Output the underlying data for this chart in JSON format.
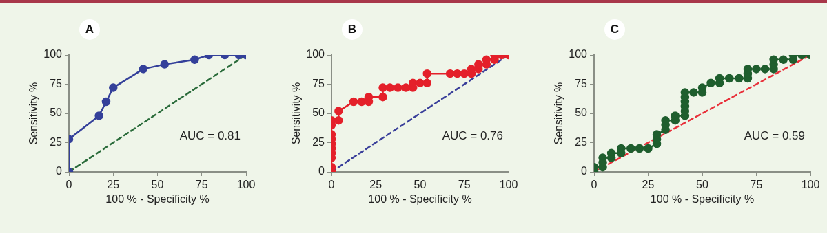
{
  "chart_data": [
    {
      "type": "line",
      "title": "A",
      "xlabel": "100 % - Specificity %",
      "ylabel": "Sensitivity %",
      "xlim": [
        0,
        100
      ],
      "xticks": [
        0,
        25,
        50,
        75,
        100
      ],
      "ylim": [
        0,
        100
      ],
      "yticks": [
        0,
        25,
        50,
        75,
        100
      ],
      "grid": false,
      "legend": false,
      "marker": "circle",
      "annotations": [
        "AUC = 0.81"
      ],
      "series": [
        {
          "color": "#34409a",
          "x": [
            0,
            0,
            17,
            21,
            25,
            42,
            54,
            71,
            79,
            88,
            96,
            100
          ],
          "values": [
            0,
            28,
            48,
            60,
            72,
            88,
            92,
            96,
            100,
            100,
            100,
            100
          ]
        },
        {
          "color": "#2a6b3a",
          "x": [
            0,
            100
          ],
          "values": [
            0,
            100
          ],
          "marker": "none",
          "line_style": "dashed"
        }
      ]
    },
    {
      "type": "line",
      "title": "B",
      "xlabel": "100 % - Specificity %",
      "ylabel": "Sensitivity %",
      "xlim": [
        0,
        100
      ],
      "xticks": [
        0,
        25,
        50,
        75,
        100
      ],
      "ylim": [
        0,
        100
      ],
      "yticks": [
        0,
        25,
        50,
        75,
        100
      ],
      "grid": false,
      "legend": false,
      "marker": "circle",
      "annotations": [
        "AUC = 0.76"
      ],
      "series": [
        {
          "color": "#e4202a",
          "x": [
            0,
            0,
            0,
            0,
            0,
            0,
            0,
            0,
            0,
            0,
            4,
            4,
            12.5,
            17,
            21,
            21,
            29,
            29,
            33,
            37.5,
            42,
            46,
            46,
            50,
            54,
            54,
            67,
            71,
            75,
            79,
            79,
            83,
            83,
            87.5,
            87.5,
            92,
            92,
            96,
            100
          ],
          "values": [
            0,
            4,
            12,
            16,
            20,
            24,
            28,
            32,
            40,
            44,
            44,
            52,
            60,
            60,
            60,
            64,
            64,
            72,
            72,
            72,
            72,
            72,
            76,
            76,
            76,
            84,
            84,
            84,
            84,
            84,
            88,
            88,
            92,
            92,
            96,
            96,
            100,
            100,
            100
          ]
        },
        {
          "color": "#3a3f9a",
          "x": [
            0,
            100
          ],
          "values": [
            0,
            100
          ],
          "marker": "none",
          "line_style": "dashed"
        }
      ]
    },
    {
      "type": "line",
      "title": "C",
      "xlabel": "100 % - Specificity %",
      "ylabel": "Sensitivity %",
      "xlim": [
        0,
        100
      ],
      "xticks": [
        0,
        25,
        50,
        75,
        100
      ],
      "ylim": [
        0,
        100
      ],
      "yticks": [
        0,
        25,
        50,
        75,
        100
      ],
      "grid": false,
      "legend": false,
      "marker": "circle",
      "annotations": [
        "AUC = 0.59"
      ],
      "series": [
        {
          "color": "#1f5e2e",
          "x": [
            0,
            0,
            4,
            4,
            4,
            8,
            8,
            12.5,
            12.5,
            17,
            21,
            25,
            29,
            29,
            29,
            33,
            33,
            33,
            37.5,
            37.5,
            42,
            42,
            42,
            42,
            42,
            42,
            46,
            50,
            50,
            54,
            58,
            58,
            62.5,
            67,
            71,
            71,
            71,
            75,
            79,
            83,
            83,
            83,
            87.5,
            92,
            92,
            96,
            100
          ],
          "values": [
            0,
            4,
            4,
            8,
            12,
            12,
            16,
            16,
            20,
            20,
            20,
            20,
            24,
            28,
            32,
            36,
            40,
            44,
            44,
            48,
            48,
            52,
            56,
            60,
            64,
            68,
            68,
            68,
            72,
            76,
            76,
            80,
            80,
            80,
            80,
            84,
            88,
            88,
            88,
            88,
            92,
            96,
            96,
            96,
            100,
            100,
            100
          ]
        },
        {
          "color": "#e8303a",
          "x": [
            0,
            100
          ],
          "values": [
            0,
            100
          ],
          "marker": "none",
          "line_style": "dashed"
        }
      ]
    }
  ]
}
